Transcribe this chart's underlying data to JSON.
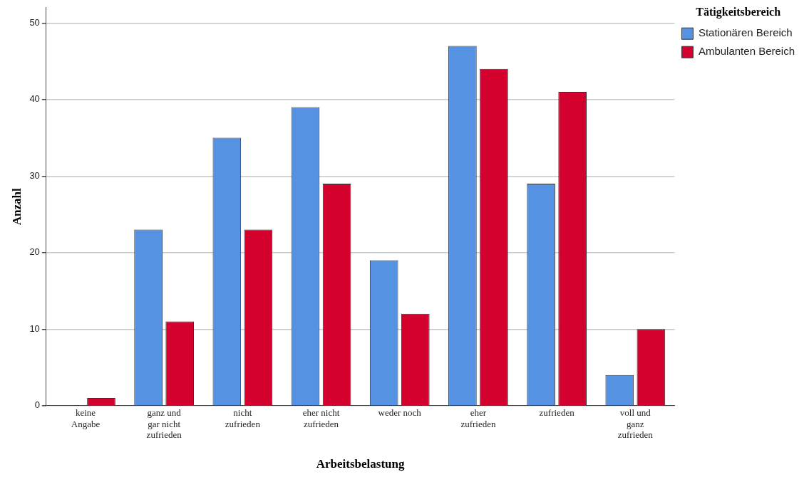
{
  "chart_data": {
    "type": "bar",
    "xlabel": "Arbeitsbelastung",
    "ylabel": "Anzahl",
    "legend_title": "Tätigkeitsbereich",
    "categories": [
      "keine Angabe",
      "ganz und gar nicht zufrieden",
      "nicht zufrieden",
      "eher nicht zufrieden",
      "weder noch",
      "eher zufrieden",
      "zufrieden",
      "voll und ganz zufrieden"
    ],
    "series": [
      {
        "name": "Stationären Bereich",
        "color": "#5593e2",
        "values": [
          0,
          23,
          35,
          39,
          19,
          47,
          29,
          4
        ]
      },
      {
        "name": "Ambulanten Bereich",
        "color": "#d4002d",
        "values": [
          1,
          11,
          23,
          29,
          12,
          44,
          41,
          10
        ]
      }
    ],
    "ylim": [
      0,
      52
    ],
    "yticks": [
      0,
      10,
      20,
      30,
      40,
      50
    ],
    "grid": "y",
    "legend": "top right"
  }
}
